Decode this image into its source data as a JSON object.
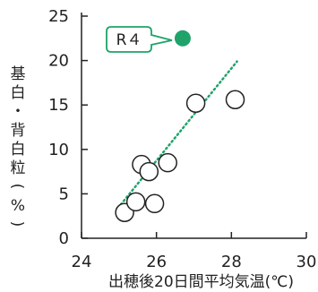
{
  "chart_data": {
    "type": "scatter",
    "title": "",
    "xlabel": "出穂後20日間平均気温(℃)",
    "ylabel_lines": [
      "基白・",
      "背白粒",
      "(%)"
    ],
    "xlim": [
      24,
      30
    ],
    "ylim": [
      0,
      25
    ],
    "x_ticks": [
      24,
      26,
      28,
      30
    ],
    "y_ticks": [
      0,
      5,
      10,
      15,
      20,
      25
    ],
    "grid": false,
    "series": [
      {
        "marker": "open-circle",
        "points": [
          {
            "x": 25.15,
            "y": 2.9
          },
          {
            "x": 25.45,
            "y": 4.1
          },
          {
            "x": 25.95,
            "y": 3.9
          },
          {
            "x": 25.6,
            "y": 8.3
          },
          {
            "x": 25.8,
            "y": 7.5
          },
          {
            "x": 26.3,
            "y": 8.5
          },
          {
            "x": 27.05,
            "y": 15.2
          },
          {
            "x": 28.1,
            "y": 15.6
          }
        ]
      },
      {
        "marker": "filled-circle",
        "color": "#1fa36a",
        "points": [
          {
            "x": 26.7,
            "y": 22.5
          }
        ]
      }
    ],
    "trendline": {
      "style": "dotted",
      "color": "#1fa36a",
      "from": {
        "x": 25.05,
        "y": 3.8
      },
      "to": {
        "x": 28.15,
        "y": 19.9
      }
    },
    "annotation": {
      "text": "R４",
      "points_to_series": 1,
      "box_color": "#1fa36a"
    }
  }
}
